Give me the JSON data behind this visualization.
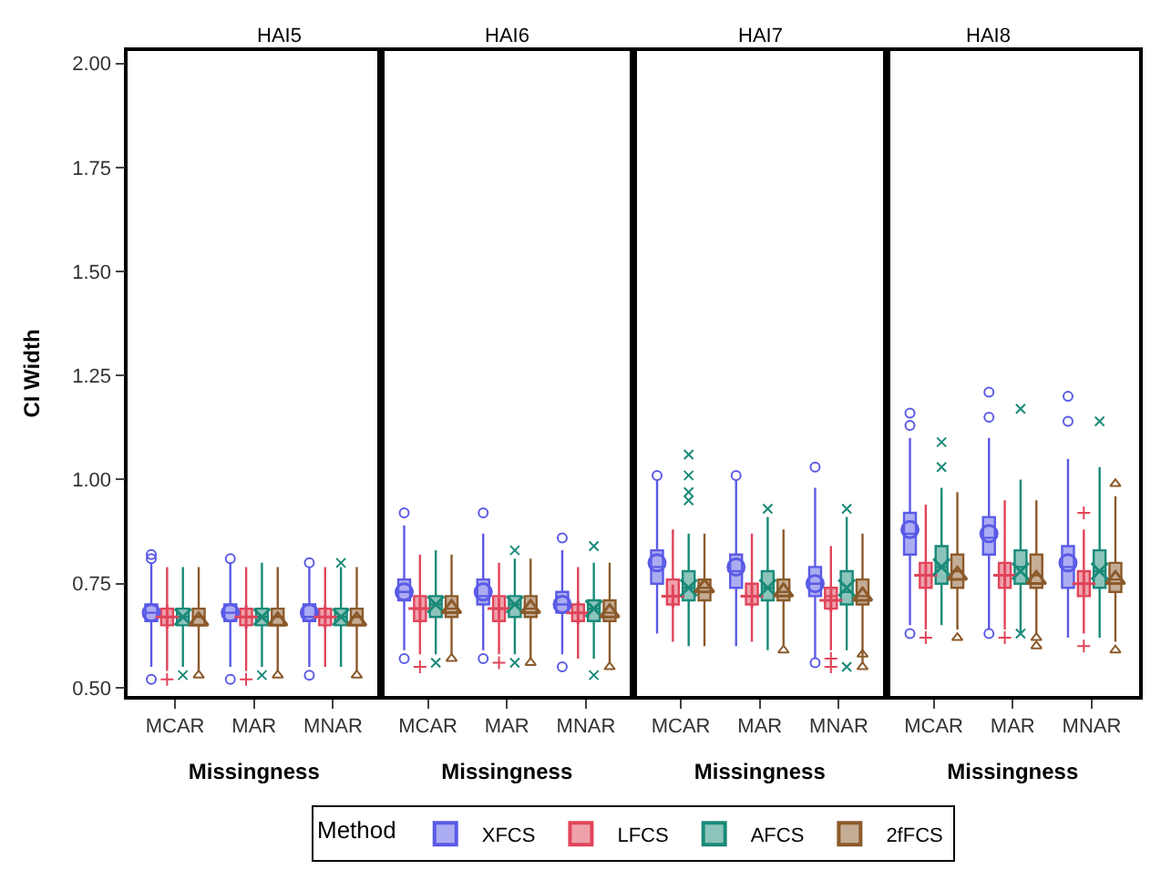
{
  "chart_data": [
    {
      "type": "box",
      "title": "HAI5",
      "xlabel": "Missingness",
      "ylabel": "CI Width",
      "categories": [
        "MCAR",
        "MAR",
        "MNAR"
      ],
      "ylim": [
        0.48,
        2.03
      ],
      "yticks": [
        {
          "value": 0.5,
          "label": "0.50"
        },
        {
          "value": 0.75,
          "label": "0.75"
        },
        {
          "value": 1.0,
          "label": "1.00"
        },
        {
          "value": 1.25,
          "label": "1.25"
        },
        {
          "value": 1.5,
          "label": "1.50"
        },
        {
          "value": 1.75,
          "label": "1.75"
        },
        {
          "value": 2.0,
          "label": "2.00"
        }
      ],
      "legend": "bottom",
      "legend_title": "Method",
      "series": [
        {
          "name": "XFCS",
          "color": "#5a5ae6",
          "marker": "circle",
          "boxes": [
            {
              "low": 0.55,
              "q1": 0.66,
              "median": 0.68,
              "q3": 0.7,
              "high": 0.8,
              "mean": 0.68,
              "outliers": [
                0.81,
                0.82,
                0.52
              ]
            },
            {
              "low": 0.55,
              "q1": 0.66,
              "median": 0.68,
              "q3": 0.7,
              "high": 0.8,
              "mean": 0.68,
              "outliers": [
                0.81,
                0.52
              ]
            },
            {
              "low": 0.55,
              "q1": 0.66,
              "median": 0.67,
              "q3": 0.7,
              "high": 0.79,
              "mean": 0.68,
              "outliers": [
                0.8,
                0.53
              ]
            }
          ]
        },
        {
          "name": "LFCS",
          "color": "#e0445a",
          "marker": "cross",
          "boxes": [
            {
              "low": 0.54,
              "q1": 0.65,
              "median": 0.67,
              "q3": 0.69,
              "high": 0.79,
              "mean": 0.67,
              "outliers": [
                0.52
              ]
            },
            {
              "low": 0.54,
              "q1": 0.65,
              "median": 0.67,
              "q3": 0.69,
              "high": 0.79,
              "mean": 0.67,
              "outliers": [
                0.52
              ]
            },
            {
              "low": 0.55,
              "q1": 0.65,
              "median": 0.67,
              "q3": 0.69,
              "high": 0.79,
              "mean": 0.67
            }
          ]
        },
        {
          "name": "AFCS",
          "color": "#1a8a78",
          "marker": "x",
          "boxes": [
            {
              "low": 0.55,
              "q1": 0.65,
              "median": 0.67,
              "q3": 0.69,
              "high": 0.79,
              "mean": 0.67,
              "outliers": [
                0.53
              ]
            },
            {
              "low": 0.55,
              "q1": 0.65,
              "median": 0.67,
              "q3": 0.69,
              "high": 0.8,
              "mean": 0.67,
              "outliers": [
                0.53
              ]
            },
            {
              "low": 0.55,
              "q1": 0.65,
              "median": 0.67,
              "q3": 0.69,
              "high": 0.79,
              "mean": 0.67,
              "outliers": [
                0.8
              ]
            }
          ]
        },
        {
          "name": "2fFCS",
          "color": "#8b5a2b",
          "marker": "triangle",
          "boxes": [
            {
              "low": 0.54,
              "q1": 0.65,
              "median": 0.67,
              "q3": 0.69,
              "high": 0.79,
              "mean": 0.66,
              "outliers": [
                0.53
              ]
            },
            {
              "low": 0.54,
              "q1": 0.65,
              "median": 0.67,
              "q3": 0.69,
              "high": 0.79,
              "mean": 0.66,
              "outliers": [
                0.53
              ]
            },
            {
              "low": 0.54,
              "q1": 0.65,
              "median": 0.67,
              "q3": 0.69,
              "high": 0.79,
              "mean": 0.66,
              "outliers": [
                0.53
              ]
            }
          ]
        }
      ]
    },
    {
      "type": "box",
      "title": "HAI6",
      "xlabel": "Missingness",
      "categories": [
        "MCAR",
        "MAR",
        "MNAR"
      ],
      "ylim": [
        0.48,
        2.03
      ],
      "tick_labels": "x",
      "series": [
        {
          "name": "XFCS",
          "color": "#5a5ae6",
          "marker": "circle",
          "boxes": [
            {
              "low": 0.59,
              "q1": 0.71,
              "median": 0.73,
              "q3": 0.76,
              "high": 0.89,
              "mean": 0.73,
              "outliers": [
                0.92,
                0.57
              ]
            },
            {
              "low": 0.59,
              "q1": 0.7,
              "median": 0.72,
              "q3": 0.76,
              "high": 0.87,
              "mean": 0.73,
              "outliers": [
                0.92,
                0.57
              ]
            },
            {
              "low": 0.58,
              "q1": 0.68,
              "median": 0.7,
              "q3": 0.73,
              "high": 0.83,
              "mean": 0.7,
              "outliers": [
                0.86,
                0.55
              ]
            }
          ]
        },
        {
          "name": "LFCS",
          "color": "#e0445a",
          "marker": "cross",
          "boxes": [
            {
              "low": 0.58,
              "q1": 0.66,
              "median": 0.69,
              "q3": 0.72,
              "high": 0.82,
              "mean": 0.69,
              "outliers": [
                0.55
              ]
            },
            {
              "low": 0.58,
              "q1": 0.66,
              "median": 0.69,
              "q3": 0.72,
              "high": 0.8,
              "mean": 0.69,
              "outliers": [
                0.56
              ]
            },
            {
              "low": 0.57,
              "q1": 0.66,
              "median": 0.68,
              "q3": 0.7,
              "high": 0.79,
              "mean": 0.68
            }
          ]
        },
        {
          "name": "AFCS",
          "color": "#1a8a78",
          "marker": "x",
          "boxes": [
            {
              "low": 0.58,
              "q1": 0.67,
              "median": 0.7,
              "q3": 0.72,
              "high": 0.83,
              "mean": 0.7,
              "outliers": [
                0.56
              ]
            },
            {
              "low": 0.58,
              "q1": 0.67,
              "median": 0.7,
              "q3": 0.72,
              "high": 0.81,
              "mean": 0.7,
              "outliers": [
                0.83,
                0.56
              ]
            },
            {
              "low": 0.57,
              "q1": 0.66,
              "median": 0.69,
              "q3": 0.71,
              "high": 0.8,
              "mean": 0.69,
              "outliers": [
                0.84,
                0.53
              ]
            }
          ]
        },
        {
          "name": "2fFCS",
          "color": "#8b5a2b",
          "marker": "triangle",
          "boxes": [
            {
              "low": 0.58,
              "q1": 0.67,
              "median": 0.69,
              "q3": 0.72,
              "high": 0.82,
              "mean": 0.69,
              "outliers": [
                0.57
              ]
            },
            {
              "low": 0.57,
              "q1": 0.67,
              "median": 0.69,
              "q3": 0.72,
              "high": 0.81,
              "mean": 0.69,
              "outliers": [
                0.56
              ]
            },
            {
              "low": 0.56,
              "q1": 0.66,
              "median": 0.68,
              "q3": 0.71,
              "high": 0.8,
              "mean": 0.68,
              "outliers": [
                0.55
              ]
            }
          ]
        }
      ]
    },
    {
      "type": "box",
      "title": "HAI7",
      "xlabel": "Missingness",
      "categories": [
        "MCAR",
        "MAR",
        "MNAR"
      ],
      "ylim": [
        0.48,
        2.03
      ],
      "tick_labels": "x",
      "series": [
        {
          "name": "XFCS",
          "color": "#5a5ae6",
          "marker": "circle",
          "boxes": [
            {
              "low": 0.63,
              "q1": 0.75,
              "median": 0.79,
              "q3": 0.83,
              "high": 1.0,
              "mean": 0.8,
              "outliers": [
                1.01
              ]
            },
            {
              "low": 0.6,
              "q1": 0.74,
              "median": 0.78,
              "q3": 0.82,
              "high": 1.0,
              "mean": 0.79,
              "outliers": [
                1.01
              ]
            },
            {
              "low": 0.57,
              "q1": 0.72,
              "median": 0.75,
              "q3": 0.79,
              "high": 0.98,
              "mean": 0.75,
              "outliers": [
                1.03,
                0.56
              ]
            }
          ]
        },
        {
          "name": "LFCS",
          "color": "#e0445a",
          "marker": "cross",
          "boxes": [
            {
              "low": 0.61,
              "q1": 0.7,
              "median": 0.72,
              "q3": 0.76,
              "high": 0.88,
              "mean": 0.72
            },
            {
              "low": 0.61,
              "q1": 0.7,
              "median": 0.72,
              "q3": 0.75,
              "high": 0.87,
              "mean": 0.72
            },
            {
              "low": 0.59,
              "q1": 0.69,
              "median": 0.72,
              "q3": 0.74,
              "high": 0.84,
              "mean": 0.71,
              "outliers": [
                0.57,
                0.55
              ]
            }
          ]
        },
        {
          "name": "AFCS",
          "color": "#1a8a78",
          "marker": "x",
          "boxes": [
            {
              "low": 0.6,
              "q1": 0.71,
              "median": 0.74,
              "q3": 0.78,
              "high": 0.87,
              "mean": 0.74,
              "outliers": [
                1.06,
                1.01,
                0.97,
                0.95
              ]
            },
            {
              "low": 0.59,
              "q1": 0.71,
              "median": 0.74,
              "q3": 0.78,
              "high": 0.91,
              "mean": 0.74,
              "outliers": [
                0.93
              ]
            },
            {
              "low": 0.59,
              "q1": 0.7,
              "median": 0.73,
              "q3": 0.78,
              "high": 0.91,
              "mean": 0.74,
              "outliers": [
                0.93,
                0.55
              ]
            }
          ]
        },
        {
          "name": "2fFCS",
          "color": "#8b5a2b",
          "marker": "triangle",
          "boxes": [
            {
              "low": 0.6,
              "q1": 0.71,
              "median": 0.74,
              "q3": 0.76,
              "high": 0.87,
              "mean": 0.74
            },
            {
              "low": 0.6,
              "q1": 0.71,
              "median": 0.73,
              "q3": 0.76,
              "high": 0.88,
              "mean": 0.73,
              "outliers": [
                0.59
              ]
            },
            {
              "low": 0.56,
              "q1": 0.7,
              "median": 0.72,
              "q3": 0.76,
              "high": 0.87,
              "mean": 0.72,
              "outliers": [
                0.58,
                0.55
              ]
            }
          ]
        }
      ]
    },
    {
      "type": "box",
      "title": "HAI8",
      "xlabel": "Missingness",
      "categories": [
        "MCAR",
        "MAR",
        "MNAR"
      ],
      "ylim": [
        0.48,
        2.03
      ],
      "tick_labels": "x",
      "series": [
        {
          "name": "XFCS",
          "color": "#5a5ae6",
          "marker": "circle",
          "boxes": [
            {
              "low": 0.65,
              "q1": 0.82,
              "median": 0.87,
              "q3": 0.92,
              "high": 1.1,
              "mean": 0.88,
              "outliers": [
                1.16,
                1.13,
                0.63
              ]
            },
            {
              "low": 0.64,
              "q1": 0.82,
              "median": 0.86,
              "q3": 0.91,
              "high": 1.1,
              "mean": 0.87,
              "outliers": [
                1.21,
                1.15,
                0.63
              ]
            },
            {
              "low": 0.62,
              "q1": 0.74,
              "median": 0.79,
              "q3": 0.84,
              "high": 1.05,
              "mean": 0.8,
              "outliers": [
                1.2,
                1.14
              ]
            }
          ]
        },
        {
          "name": "LFCS",
          "color": "#e0445a",
          "marker": "cross",
          "boxes": [
            {
              "low": 0.64,
              "q1": 0.74,
              "median": 0.77,
              "q3": 0.8,
              "high": 0.94,
              "mean": 0.77,
              "outliers": [
                0.62
              ]
            },
            {
              "low": 0.64,
              "q1": 0.74,
              "median": 0.77,
              "q3": 0.8,
              "high": 0.95,
              "mean": 0.77,
              "outliers": [
                0.62
              ]
            },
            {
              "low": 0.63,
              "q1": 0.72,
              "median": 0.75,
              "q3": 0.78,
              "high": 0.88,
              "mean": 0.75,
              "outliers": [
                0.92,
                0.6
              ]
            }
          ]
        },
        {
          "name": "AFCS",
          "color": "#1a8a78",
          "marker": "x",
          "boxes": [
            {
              "low": 0.65,
              "q1": 0.75,
              "median": 0.79,
              "q3": 0.84,
              "high": 0.98,
              "mean": 0.79,
              "outliers": [
                1.09,
                1.03
              ]
            },
            {
              "low": 0.63,
              "q1": 0.75,
              "median": 0.79,
              "q3": 0.83,
              "high": 1.0,
              "mean": 0.78,
              "outliers": [
                1.17,
                0.63
              ]
            },
            {
              "low": 0.62,
              "q1": 0.74,
              "median": 0.78,
              "q3": 0.83,
              "high": 1.03,
              "mean": 0.78,
              "outliers": [
                1.14
              ]
            }
          ]
        },
        {
          "name": "2fFCS",
          "color": "#8b5a2b",
          "marker": "triangle",
          "boxes": [
            {
              "low": 0.64,
              "q1": 0.74,
              "median": 0.78,
              "q3": 0.82,
              "high": 0.97,
              "mean": 0.77,
              "outliers": [
                0.62
              ]
            },
            {
              "low": 0.63,
              "q1": 0.74,
              "median": 0.77,
              "q3": 0.82,
              "high": 0.95,
              "mean": 0.76,
              "outliers": [
                0.62,
                0.6
              ]
            },
            {
              "low": 0.61,
              "q1": 0.73,
              "median": 0.76,
              "q3": 0.8,
              "high": 0.96,
              "mean": 0.76,
              "outliers": [
                0.99,
                0.59
              ]
            }
          ]
        }
      ]
    }
  ]
}
